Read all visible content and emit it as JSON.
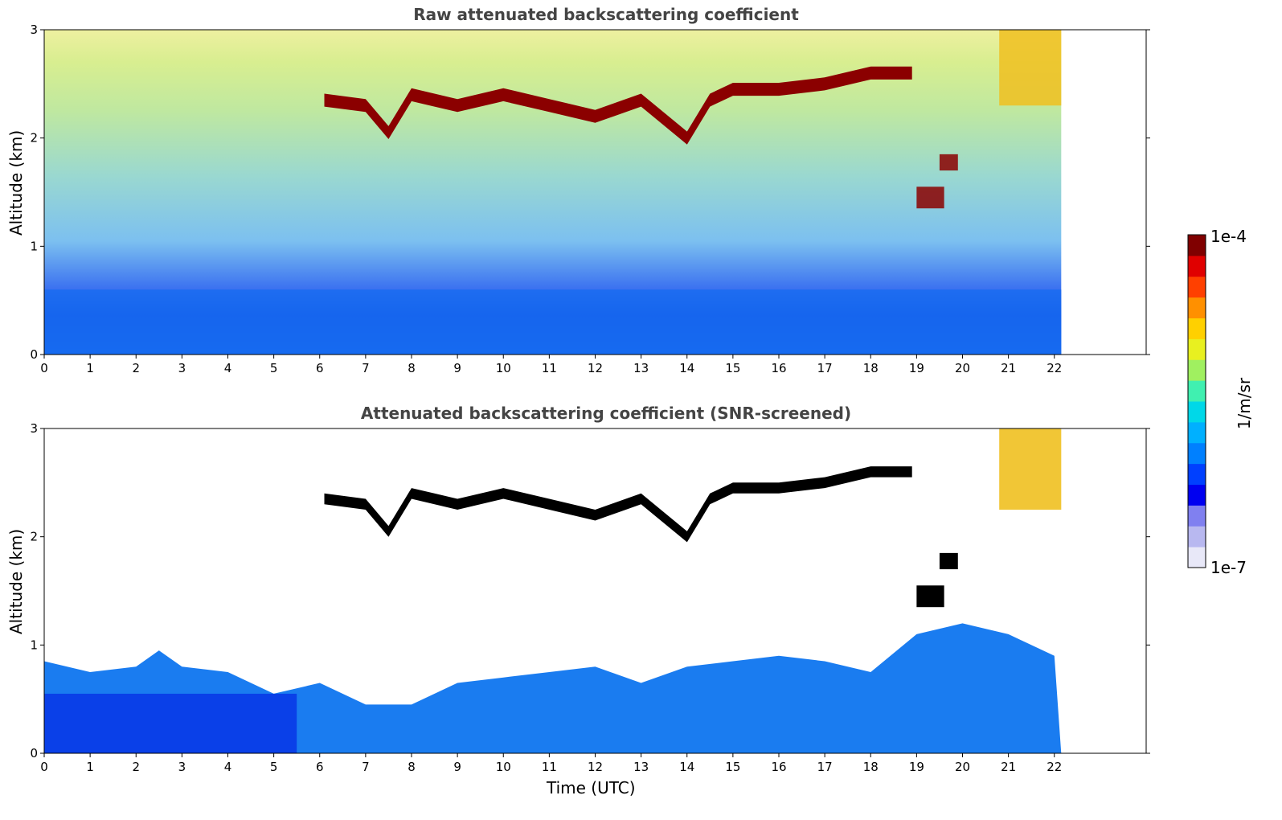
{
  "chart_data": [
    {
      "type": "heatmap",
      "title": "Raw attenuated backscattering coefficient",
      "xlabel": "",
      "ylabel": "Altitude (km)",
      "xlim": [
        0,
        24
      ],
      "ylim": [
        0,
        3
      ],
      "xticks": [
        "0",
        "1",
        "2",
        "3",
        "4",
        "5",
        "6",
        "7",
        "8",
        "9",
        "10",
        "11",
        "12",
        "13",
        "14",
        "15",
        "16",
        "17",
        "18",
        "19",
        "20",
        "21",
        "22"
      ],
      "yticks": [
        "0",
        "1",
        "2",
        "3"
      ],
      "data_time_range": [
        0,
        22.15
      ],
      "features": [
        {
          "name": "boundary-layer aerosol",
          "time": [
            0,
            22.15
          ],
          "altitude_top": 0.6
        },
        {
          "name": "cloud layer",
          "time": [
            6.1,
            18.9
          ],
          "altitude": [
            2.3,
            2.6
          ]
        },
        {
          "name": "cloud",
          "time": [
            19.0,
            19.6
          ],
          "altitude": [
            1.35,
            1.55
          ]
        },
        {
          "name": "cloud",
          "time": [
            19.5,
            19.9
          ],
          "altitude": [
            1.7,
            1.85
          ]
        },
        {
          "name": "high signal",
          "time": [
            20.8,
            22.15
          ],
          "altitude": [
            2.3,
            3.0
          ]
        }
      ]
    },
    {
      "type": "heatmap",
      "title": "Attenuated backscattering coefficient (SNR-screened)",
      "xlabel": "Time (UTC)",
      "ylabel": "Altitude (km)",
      "xlim": [
        0,
        24
      ],
      "ylim": [
        0,
        3
      ],
      "xticks": [
        "0",
        "1",
        "2",
        "3",
        "4",
        "5",
        "6",
        "7",
        "8",
        "9",
        "10",
        "11",
        "12",
        "13",
        "14",
        "15",
        "16",
        "17",
        "18",
        "19",
        "20",
        "21",
        "22"
      ],
      "yticks": [
        "0",
        "1",
        "2",
        "3"
      ],
      "data_time_range": [
        0,
        22.15
      ],
      "boundary_layer_top": [
        [
          0,
          0.85
        ],
        [
          1,
          0.75
        ],
        [
          2,
          0.8
        ],
        [
          2.5,
          0.95
        ],
        [
          3,
          0.8
        ],
        [
          4,
          0.75
        ],
        [
          5,
          0.55
        ],
        [
          6,
          0.65
        ],
        [
          7,
          0.45
        ],
        [
          8,
          0.45
        ],
        [
          9,
          0.65
        ],
        [
          10,
          0.7
        ],
        [
          11,
          0.75
        ],
        [
          12,
          0.8
        ],
        [
          13,
          0.65
        ],
        [
          14,
          0.8
        ],
        [
          15,
          0.85
        ],
        [
          16,
          0.9
        ],
        [
          17,
          0.85
        ],
        [
          18,
          0.75
        ],
        [
          19,
          1.1
        ],
        [
          20,
          1.2
        ],
        [
          21,
          1.1
        ],
        [
          22,
          0.9
        ]
      ]
    }
  ],
  "colorbar": {
    "max_label": "1e-4",
    "min_label": "1e-7",
    "unit": "1/m/sr",
    "colors": [
      "#e8e8f8",
      "#b8b8f0",
      "#8080f0",
      "#0000f0",
      "#0040ff",
      "#0080ff",
      "#00b0ff",
      "#00d8e8",
      "#40f0b0",
      "#a0f060",
      "#e8f020",
      "#ffd000",
      "#ff9000",
      "#ff4000",
      "#e00000",
      "#800000"
    ]
  }
}
